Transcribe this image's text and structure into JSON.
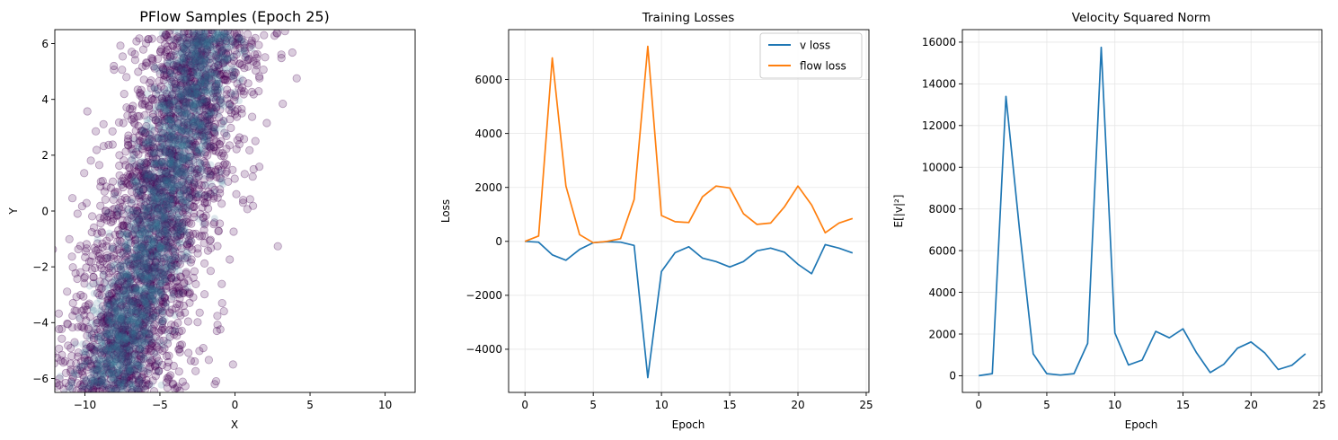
{
  "chart_data": [
    {
      "type": "scatter",
      "title": "PFlow Samples (Epoch 25)",
      "xlabel": "X",
      "ylabel": "Y",
      "xlim": [
        -12,
        12
      ],
      "ylim": [
        -6.5,
        6.5
      ],
      "xticks": [
        "−10",
        "−5",
        "0",
        "5",
        "10"
      ],
      "xtick_values": [
        -10,
        -5,
        0,
        5,
        10
      ],
      "yticks": [
        "−6",
        "−4",
        "−2",
        "0",
        "2",
        "4",
        "6"
      ],
      "ytick_values": [
        -6,
        -4,
        -2,
        0,
        2,
        4,
        6
      ],
      "grid": false,
      "point_color": "#440154",
      "dense_color": "#2f6e8e",
      "distribution": {
        "description_of_shape": "diagonal band",
        "x_at_y_min": -8.3,
        "x_at_y_max": -1.8,
        "y_range": [
          -6.5,
          6.5
        ],
        "core_sd_x": 1.2,
        "outlier_sd_x": 2.6
      }
    },
    {
      "type": "line",
      "title": "Training Losses",
      "xlabel": "Epoch",
      "ylabel": "Loss",
      "xlim": [
        -1.2,
        25.2
      ],
      "ylim": [
        -5600,
        7850
      ],
      "xticks": [
        "0",
        "5",
        "10",
        "15",
        "20",
        "25"
      ],
      "xtick_values": [
        0,
        5,
        10,
        15,
        20,
        25
      ],
      "yticks": [
        "−4000",
        "−2000",
        "0",
        "2000",
        "4000",
        "6000"
      ],
      "ytick_values": [
        -4000,
        -2000,
        0,
        2000,
        4000,
        6000
      ],
      "grid": true,
      "legend": "top-right",
      "x": [
        0,
        1,
        2,
        3,
        4,
        5,
        6,
        7,
        8,
        9,
        10,
        11,
        12,
        13,
        14,
        15,
        16,
        17,
        18,
        19,
        20,
        21,
        22,
        23,
        24
      ],
      "series": [
        {
          "name": "v loss",
          "color": "#1f77b4",
          "values": [
            0,
            -30,
            -500,
            -700,
            -300,
            -50,
            -10,
            -30,
            -150,
            -5050,
            -1120,
            -420,
            -200,
            -620,
            -750,
            -950,
            -750,
            -350,
            -250,
            -400,
            -850,
            -1200,
            -120,
            -250,
            -430
          ]
        },
        {
          "name": "flow loss",
          "color": "#ff7f0e",
          "values": [
            0,
            200,
            6800,
            2050,
            250,
            -50,
            0,
            100,
            1550,
            7230,
            960,
            730,
            700,
            1650,
            2050,
            1980,
            1030,
            630,
            680,
            1270,
            2050,
            1350,
            320,
            680,
            850
          ]
        }
      ]
    },
    {
      "type": "line",
      "title": "Velocity Squared Norm",
      "xlabel": "Epoch",
      "ylabel": "E[|v|²]",
      "xlim": [
        -1.2,
        25.2
      ],
      "ylim": [
        -800,
        16600
      ],
      "xticks": [
        "0",
        "5",
        "10",
        "15",
        "20",
        "25"
      ],
      "xtick_values": [
        0,
        5,
        10,
        15,
        20,
        25
      ],
      "yticks": [
        "0",
        "2000",
        "4000",
        "6000",
        "8000",
        "10000",
        "12000",
        "14000",
        "16000"
      ],
      "ytick_values": [
        0,
        2000,
        4000,
        6000,
        8000,
        10000,
        12000,
        14000,
        16000
      ],
      "grid": true,
      "x": [
        0,
        1,
        2,
        3,
        4,
        5,
        6,
        7,
        8,
        9,
        10,
        11,
        12,
        13,
        14,
        15,
        16,
        17,
        18,
        19,
        20,
        21,
        22,
        23,
        24
      ],
      "series": [
        {
          "color": "#1f77b4",
          "values": [
            0,
            100,
            13400,
            7000,
            1050,
            100,
            30,
            100,
            1550,
            15750,
            2050,
            520,
            750,
            2130,
            1820,
            2250,
            1100,
            150,
            550,
            1320,
            1620,
            1100,
            300,
            500,
            1050
          ]
        }
      ]
    }
  ]
}
